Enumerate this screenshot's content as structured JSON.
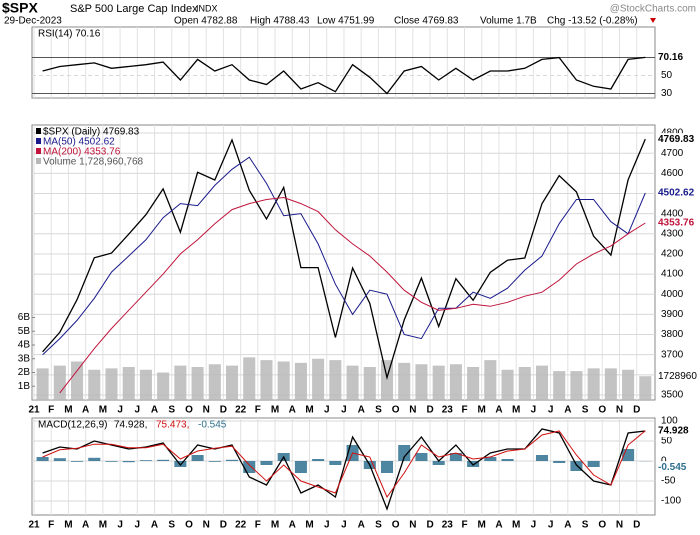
{
  "header": {
    "symbol": "$SPX",
    "name": "S&P 500 Large Cap Index",
    "exchange": "INDX",
    "date": "29-Dec-2023",
    "quote": [
      "Open 4782.88",
      "High 4788.43",
      "Low 4751.99",
      "Close 4769.83",
      "Volume 1.7B"
    ],
    "change": "Chg -13.52 (-0.28%)",
    "watermark": "@StockCharts.com"
  },
  "chart_data": [
    {
      "type": "line",
      "title": "RSI(14) 70.16",
      "categories": [
        "21",
        "F",
        "M",
        "A",
        "M",
        "J",
        "J",
        "A",
        "S",
        "O",
        "N",
        "D",
        "22",
        "F",
        "M",
        "A",
        "M",
        "J",
        "J",
        "A",
        "S",
        "O",
        "N",
        "D",
        "23",
        "F",
        "M",
        "A",
        "M",
        "J",
        "J",
        "A",
        "S",
        "O",
        "N",
        "D"
      ],
      "series": [
        {
          "name": "RSI(14)",
          "color": "#000000",
          "values": [
            55,
            60,
            62,
            64,
            58,
            60,
            62,
            65,
            45,
            68,
            55,
            62,
            45,
            40,
            55,
            35,
            42,
            32,
            62,
            48,
            30,
            55,
            60,
            45,
            58,
            45,
            55,
            55,
            58,
            68,
            70,
            45,
            38,
            35,
            68,
            70.16
          ]
        }
      ],
      "ylim": [
        25,
        104
      ],
      "yticks": [
        30,
        50,
        70
      ],
      "hlines": [
        30,
        70
      ],
      "grid": true
    },
    {
      "type": "line",
      "categories": [
        "21",
        "F",
        "M",
        "A",
        "M",
        "J",
        "J",
        "A",
        "S",
        "O",
        "N",
        "D",
        "22",
        "F",
        "M",
        "A",
        "M",
        "J",
        "J",
        "A",
        "S",
        "O",
        "N",
        "D",
        "23",
        "F",
        "M",
        "A",
        "M",
        "J",
        "J",
        "A",
        "S",
        "O",
        "N",
        "D"
      ],
      "series": [
        {
          "name": "$SPX (Daily) 4769.83",
          "color": "#000000",
          "values": [
            3714,
            3811,
            3973,
            4181,
            4204,
            4298,
            4395,
            4523,
            4308,
            4605,
            4567,
            4766,
            4516,
            4374,
            4530,
            4132,
            4132,
            3785,
            4130,
            3955,
            3586,
            3872,
            4080,
            3840,
            4077,
            3970,
            4109,
            4169,
            4180,
            4450,
            4589,
            4508,
            4288,
            4194,
            4568,
            4769.83
          ]
        },
        {
          "name": "MA(50) 4502.62",
          "color": "#1a1a8c",
          "values": [
            3700,
            3780,
            3870,
            3980,
            4110,
            4190,
            4270,
            4380,
            4450,
            4440,
            4540,
            4620,
            4680,
            4550,
            4390,
            4400,
            4250,
            4050,
            3900,
            4020,
            4000,
            3800,
            3780,
            3930,
            3930,
            4010,
            3980,
            4030,
            4120,
            4190,
            4350,
            4470,
            4470,
            4360,
            4300,
            4502.62
          ]
        },
        {
          "name": "MA(200) 4353.76",
          "color": "#c0143c",
          "values": [
            null,
            3510,
            3620,
            3730,
            3830,
            3920,
            4010,
            4100,
            4200,
            4270,
            4350,
            4420,
            4450,
            4470,
            4480,
            4450,
            4410,
            4320,
            4250,
            4190,
            4110,
            4020,
            3960,
            3920,
            3930,
            3950,
            3940,
            3960,
            3990,
            4010,
            4070,
            4150,
            4200,
            4240,
            4300,
            4353.76
          ]
        },
        {
          "name": "Volume 1,728,960,768",
          "type": "bar",
          "axis": "y2",
          "color": "#b8b8b8",
          "values": [
            2.3,
            2.5,
            2.8,
            2.2,
            2.3,
            2.4,
            2.2,
            2.0,
            2.5,
            2.4,
            2.6,
            2.5,
            3.1,
            2.9,
            2.8,
            2.7,
            3.0,
            2.9,
            2.5,
            2.4,
            2.9,
            2.7,
            2.6,
            2.5,
            2.6,
            2.4,
            2.9,
            2.2,
            2.4,
            2.5,
            2.1,
            2.1,
            2.3,
            2.3,
            2.2,
            1.728960768
          ]
        }
      ],
      "volume_badge": "1728960",
      "ylim": [
        3475,
        4840
      ],
      "yticks": [
        3500,
        3600,
        3700,
        3800,
        3900,
        4000,
        4100,
        4200,
        4300,
        4400,
        4500,
        4600,
        4700,
        4800
      ],
      "y2lim": [
        0,
        20
      ],
      "y2ticks": [
        {
          "value": 1,
          "label": "1B"
        },
        {
          "value": 2,
          "label": "2B"
        },
        {
          "value": 3,
          "label": "3B"
        },
        {
          "value": 4,
          "label": "4B"
        },
        {
          "value": 5,
          "label": "5B"
        },
        {
          "value": 6,
          "label": "6B"
        }
      ],
      "grid": true
    },
    {
      "type": "line",
      "title": "MACD(12,26,9)",
      "legend_values": [
        "74.928,",
        "75.473,",
        "-0.545"
      ],
      "categories": [
        "21",
        "F",
        "M",
        "A",
        "M",
        "J",
        "J",
        "A",
        "S",
        "O",
        "N",
        "D",
        "22",
        "F",
        "M",
        "A",
        "M",
        "J",
        "J",
        "A",
        "S",
        "O",
        "N",
        "D",
        "23",
        "F",
        "M",
        "A",
        "M",
        "J",
        "J",
        "A",
        "S",
        "O",
        "N",
        "D"
      ],
      "series": [
        {
          "name": "MACD",
          "color": "#000000",
          "values": [
            20,
            35,
            30,
            50,
            40,
            30,
            35,
            45,
            -10,
            40,
            30,
            40,
            -40,
            -60,
            10,
            -80,
            -60,
            -90,
            60,
            -10,
            -120,
            10,
            60,
            0,
            40,
            -10,
            20,
            30,
            30,
            80,
            70,
            -10,
            -50,
            -60,
            70,
            74.928
          ]
        },
        {
          "name": "Signal",
          "color": "#d01010",
          "values": [
            10,
            28,
            32,
            42,
            42,
            33,
            33,
            42,
            5,
            25,
            32,
            37,
            -10,
            -50,
            -10,
            -50,
            -65,
            -80,
            20,
            10,
            -90,
            -30,
            40,
            10,
            20,
            5,
            10,
            25,
            30,
            65,
            75,
            15,
            -35,
            -60,
            40,
            75.473
          ]
        },
        {
          "name": "Histogram",
          "type": "bar",
          "color": "#2f7090",
          "values": [
            10,
            7,
            -2,
            8,
            -2,
            -3,
            2,
            3,
            -15,
            15,
            -2,
            3,
            -30,
            -10,
            20,
            -30,
            5,
            -10,
            40,
            -20,
            -30,
            40,
            20,
            -10,
            20,
            -15,
            10,
            5,
            0,
            15,
            -5,
            -25,
            -15,
            0,
            30,
            -0.545
          ]
        }
      ],
      "ylim": [
        -135,
        107.5
      ],
      "yticks": [
        -100,
        -50,
        0,
        50,
        100
      ],
      "grid": true
    }
  ]
}
